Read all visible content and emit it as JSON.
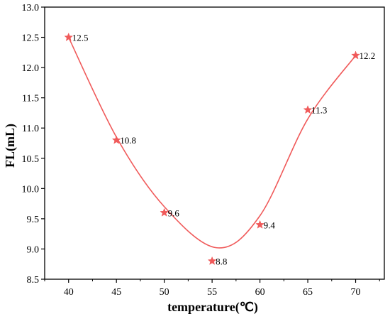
{
  "chart_data": {
    "type": "scatter",
    "title": "",
    "xlabel": "temperature(℃)",
    "ylabel": "FL(mL)",
    "xlim": [
      37.5,
      73
    ],
    "ylim": [
      8.5,
      13.0
    ],
    "x_ticks": [
      "40",
      "45",
      "50",
      "55",
      "60",
      "65",
      "70"
    ],
    "y_ticks": [
      "8.5",
      "9.0",
      "9.5",
      "10.0",
      "10.5",
      "11.0",
      "11.5",
      "12.0",
      "12.5",
      "13.0"
    ],
    "grid": false,
    "legend": "none",
    "marker": "star",
    "series": [
      {
        "x": [
          40,
          45,
          50,
          55,
          60,
          65,
          70
        ],
        "y": [
          12.5,
          10.8,
          9.6,
          8.8,
          9.4,
          11.3,
          12.2
        ],
        "labels": [
          "12.5",
          "10.8",
          "9.6",
          "8.8",
          "9.4",
          "11.3",
          "12.2"
        ],
        "color": "#f05a5a"
      }
    ],
    "fit_curve": {
      "x": [
        40,
        45,
        50,
        55.5,
        60,
        65,
        70
      ],
      "y": [
        12.5,
        10.85,
        9.7,
        9.02,
        9.55,
        11.15,
        12.2
      ],
      "color": "#f05a5a"
    }
  }
}
